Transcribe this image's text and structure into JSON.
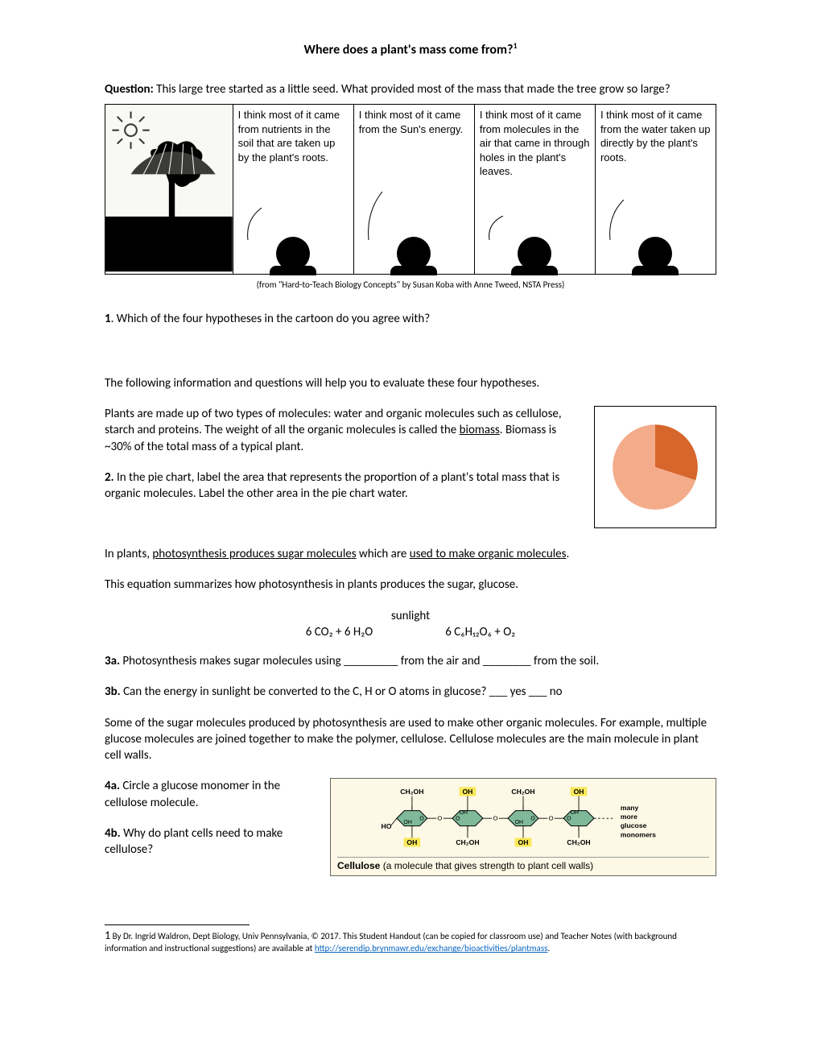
{
  "title": "Where does a plant's mass come from?",
  "title_footnote_mark": "1",
  "question_label": "Question:",
  "question_text": " This large tree started as a little seed. What provided most of the mass that made the tree grow so large?",
  "cartoon": {
    "cells": [
      "I think most of it came from nutrients in the soil that are taken up by the plant's roots.",
      "I think most of it came from the Sun's energy.",
      "I think most of it came from molecules in the air that came in through holes in the plant's leaves.",
      "I think most of it came from the water taken up directly by the plant's roots."
    ]
  },
  "caption": "(from \"Hard-to-Teach Biology Concepts\" by Susan Koba with Anne Tweed, NSTA Press)",
  "q1_label": "1",
  "q1_text": ".  Which of the four hypotheses in the cartoon do you agree with?",
  "intro2": "The following information and questions will help you to evaluate these four hypotheses.",
  "biomass_para": "Plants are made up of two types of molecules: water and organic molecules such as cellulose, starch and proteins. The weight of all the organic molecules is called the ",
  "biomass_word": "biomass",
  "biomass_tail": ". Biomass is ~30% of the total mass of a typical plant.",
  "q2_label": "2.",
  "q2_text": " In the pie chart, label the area that represents the proportion of a plant's total mass that is organic molecules. Label the other area in the pie chart water.",
  "pie": {
    "values": [
      30,
      70
    ],
    "colors": [
      "#d6662b",
      "#f4ab8a"
    ],
    "border": "#cccccc"
  },
  "photosynth_line_a": "In plants, ",
  "photosynth_u1": "photosynthesis produces sugar molecules",
  "photosynth_mid": " which are ",
  "photosynth_u2": "used to make organic molecules",
  "photosynth_tail": ".",
  "eq_intro": "This equation summarizes how photosynthesis in plants produces the sugar, glucose.",
  "eq_top": "sunlight",
  "eq_left": "6 CO₂ + 6 H₂O",
  "eq_right": "6 C₆H₁₂O₆ + O₂",
  "q3a_label": "3a.",
  "q3a_text": " Photosynthesis makes sugar molecules using _________ from the air and ________ from the soil.",
  "q3b_label": "3b.",
  "q3b_text": " Can the energy in sunlight be converted to the C, H or O atoms in glucose?  ___ yes   ___ no",
  "cellulose_para": "Some of the sugar molecules produced by photosynthesis are used to make other organic molecules. For example, multiple glucose molecules are joined together to make the polymer, cellulose. Cellulose molecules are the main molecule in plant cell walls.",
  "q4a_label": "4a.",
  "q4a_text": " Circle a glucose monomer in the cellulose molecule.",
  "q4b_label": "4b.",
  "q4b_text": " Why do plant cells need to make cellulose?",
  "cellulose_diagram": {
    "monomer_top": [
      "CH₂OH",
      "OH",
      "CH₂OH",
      "OH"
    ],
    "monomer_bottom": [
      "OH",
      "CH₂OH",
      "OH",
      "CH₂OH"
    ],
    "side_left": "HO",
    "side_label": "many more glucose monomers",
    "ring_fill": "#7fb99a",
    "highlight": "#f8e85a",
    "caption_bold": "Cellulose",
    "caption_rest": " (a molecule that gives strength to plant cell walls)"
  },
  "footnote_num": "1",
  "footnote_text": " By Dr. Ingrid Waldron, Dept Biology, Univ Pennsylvania, © 2017. This Student Handout (can be copied for classroom use) and Teacher Notes (with background information and instructional suggestions) are available at ",
  "footnote_link": "http://serendip.brynmawr.edu/exchange/bioactivities/plantmass",
  "footnote_tail": "."
}
